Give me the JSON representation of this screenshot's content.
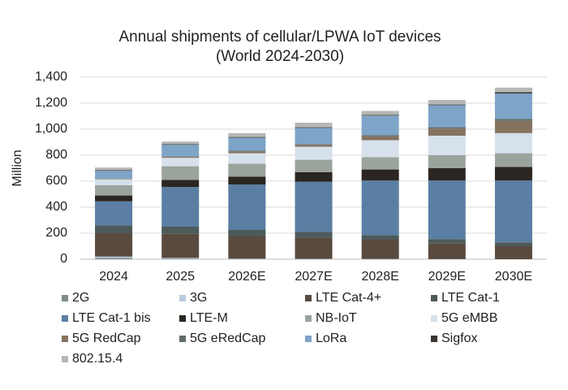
{
  "chart_data": {
    "type": "stacked_bar",
    "title": "Annual shipments of cellular/LPWA IoT devices",
    "subtitle": "(World 2024-2030)",
    "y_label": "Million",
    "categories": [
      "2024",
      "2025",
      "2026E",
      "2027E",
      "2028E",
      "2029E",
      "2030E"
    ],
    "ylim": [
      0,
      1400
    ],
    "yticks": [
      0,
      200,
      400,
      600,
      800,
      {
        "value": 1000,
        "label": "1,000"
      },
      {
        "value": 1200,
        "label": "1,200"
      },
      {
        "value": 1400,
        "label": "1,400"
      }
    ],
    "grid": true,
    "series": [
      {
        "name": "2G",
        "color": "#7f8c8a",
        "values": [
          10,
          5,
          3,
          2,
          1,
          1,
          0
        ]
      },
      {
        "name": "3G",
        "color": "#b8cce0",
        "values": [
          10,
          5,
          2,
          1,
          1,
          0,
          0
        ]
      },
      {
        "name": "LTE Cat-4+",
        "color": "#594a3f",
        "values": [
          180,
          185,
          170,
          162,
          148,
          119,
          100
        ]
      },
      {
        "name": "LTE Cat-1",
        "color": "#4d5a5a",
        "values": [
          60,
          55,
          50,
          45,
          35,
          35,
          30
        ]
      },
      {
        "name": "LTE Cat-1 bis",
        "color": "#5a7fa3",
        "values": [
          185,
          305,
          350,
          385,
          420,
          450,
          475
        ]
      },
      {
        "name": "LTE-M",
        "color": "#2b2621",
        "values": [
          45,
          55,
          60,
          75,
          85,
          95,
          105
        ]
      },
      {
        "name": "NB-IoT",
        "color": "#9aa39c",
        "values": [
          80,
          105,
          100,
          95,
          95,
          100,
          105
        ]
      },
      {
        "name": "5G eMBB",
        "color": "#d6e1ec",
        "values": [
          45,
          65,
          80,
          100,
          130,
          150,
          155
        ]
      },
      {
        "name": "5G RedCap",
        "color": "#85735f",
        "values": [
          5,
          10,
          15,
          15,
          30,
          55,
          95
        ]
      },
      {
        "name": "5G eRedCap",
        "color": "#5e6b69",
        "values": [
          0,
          0,
          5,
          5,
          10,
          10,
          15
        ]
      },
      {
        "name": "LoRa",
        "color": "#7ea4c8",
        "values": [
          60,
          90,
          100,
          125,
          150,
          170,
          195
        ]
      },
      {
        "name": "Sigfox",
        "color": "#3a3530",
        "values": [
          5,
          5,
          5,
          5,
          5,
          5,
          10
        ]
      },
      {
        "name": "802.15.4",
        "color": "#b5b8b3",
        "values": [
          20,
          20,
          30,
          35,
          30,
          35,
          35
        ]
      }
    ]
  }
}
